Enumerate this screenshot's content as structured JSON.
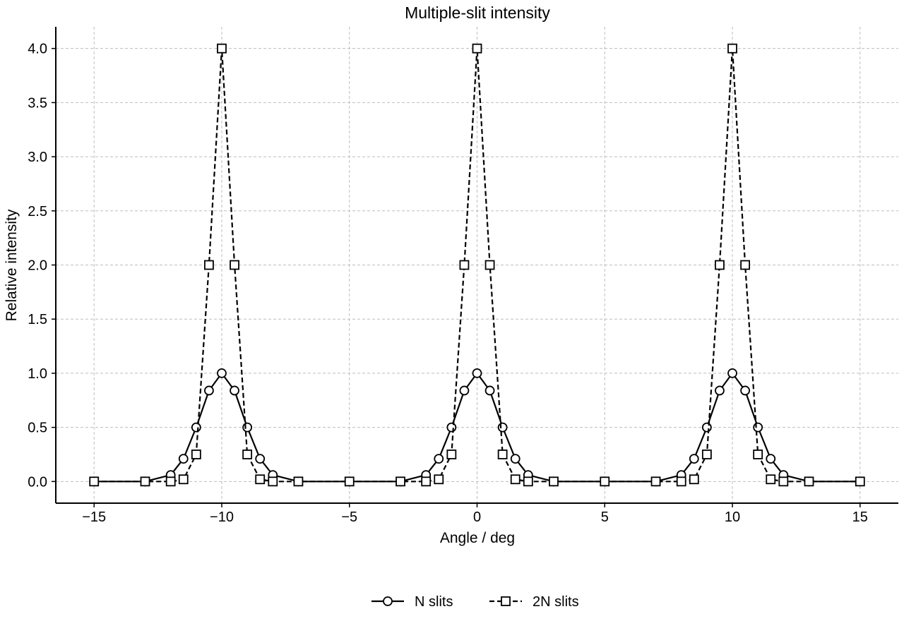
{
  "chart_data": {
    "type": "line",
    "title": "Multiple-slit intensity",
    "xlabel": "Angle / deg",
    "ylabel": "Relative intensity",
    "xlim": [
      -16.5,
      16.5
    ],
    "ylim": [
      -0.2,
      4.2
    ],
    "xticks": [
      -15,
      -10,
      -5,
      0,
      5,
      10,
      15
    ],
    "xtick_labels": [
      "−15",
      "−10",
      "−5",
      "0",
      "5",
      "10",
      "15"
    ],
    "yticks": [
      0.0,
      0.5,
      1.0,
      1.5,
      2.0,
      2.5,
      3.0,
      3.5,
      4.0
    ],
    "ytick_labels": [
      "0.0",
      "0.5",
      "1.0",
      "1.5",
      "2.0",
      "2.5",
      "3.0",
      "3.5",
      "4.0"
    ],
    "grid": true,
    "legend_position": "bottom-center",
    "series": [
      {
        "name": "N slits",
        "line_style": "solid",
        "marker": "circle",
        "color": "#000000",
        "x": [
          -15,
          -13,
          -12,
          -11.5,
          -11,
          -10.5,
          -10,
          -9.5,
          -9,
          -8.5,
          -8,
          -7,
          -5,
          -3,
          -2,
          -1.5,
          -1,
          -0.5,
          0,
          0.5,
          1,
          1.5,
          2,
          3,
          5,
          7,
          8,
          8.5,
          9,
          9.5,
          10,
          10.5,
          11,
          11.5,
          12,
          13,
          15
        ],
        "y": [
          0,
          0,
          0.06,
          0.21,
          0.5,
          0.84,
          1.0,
          0.84,
          0.5,
          0.21,
          0.06,
          0,
          0,
          0,
          0.06,
          0.21,
          0.5,
          0.84,
          1.0,
          0.84,
          0.5,
          0.21,
          0.06,
          0,
          0,
          0,
          0.06,
          0.21,
          0.5,
          0.84,
          1.0,
          0.84,
          0.5,
          0.21,
          0.06,
          0,
          0
        ]
      },
      {
        "name": "2N slits",
        "line_style": "dashed",
        "marker": "square",
        "color": "#000000",
        "x": [
          -15,
          -13,
          -12,
          -11.5,
          -11,
          -10.5,
          -10,
          -9.5,
          -9,
          -8.5,
          -8,
          -7,
          -5,
          -3,
          -2,
          -1.5,
          -1,
          -0.5,
          0,
          0.5,
          1,
          1.5,
          2,
          3,
          5,
          7,
          8,
          8.5,
          9,
          9.5,
          10,
          10.5,
          11,
          11.5,
          12,
          13,
          15
        ],
        "y": [
          0,
          0,
          0,
          0.02,
          0.25,
          2.0,
          4.0,
          2.0,
          0.25,
          0.02,
          0,
          0,
          0,
          0,
          0,
          0.02,
          0.25,
          2.0,
          4.0,
          2.0,
          0.25,
          0.02,
          0,
          0,
          0,
          0,
          0,
          0.02,
          0.25,
          2.0,
          4.0,
          2.0,
          0.25,
          0.02,
          0,
          0,
          0
        ]
      }
    ]
  }
}
